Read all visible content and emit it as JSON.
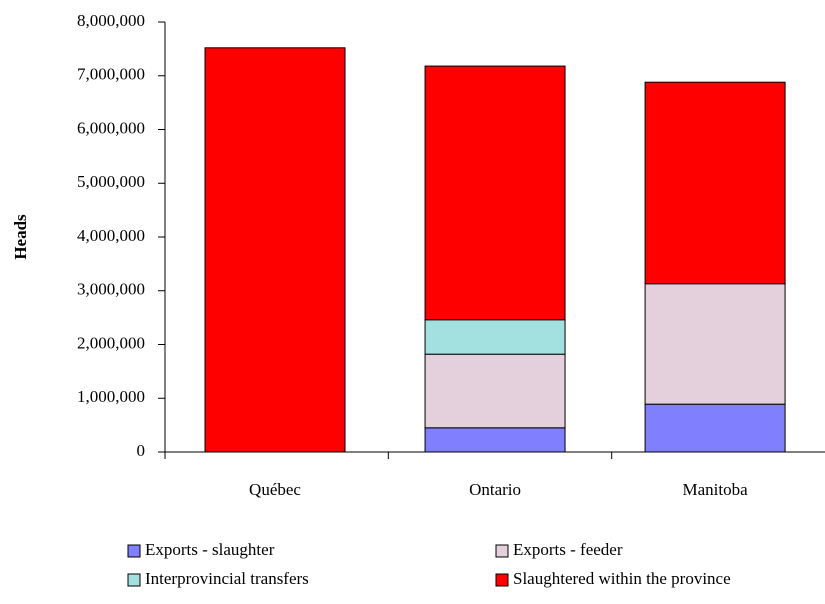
{
  "chart_data": {
    "type": "stacked_bar",
    "y_label": "Heads",
    "categories": [
      "Québec",
      "Ontario",
      "Manitoba"
    ],
    "series": [
      {
        "name": "Exports - slaughter",
        "color": "#8080ff",
        "values": [
          0,
          450000,
          890000
        ]
      },
      {
        "name": "Exports - feeder",
        "color": "#e4cfdc",
        "values": [
          0,
          1370000,
          2240000
        ]
      },
      {
        "name": "Interprovincial transfers",
        "color": "#a3e0e0",
        "values": [
          0,
          640000,
          0
        ]
      },
      {
        "name": "Slaughtered within the province",
        "color": "#ff0000",
        "values": [
          7520000,
          4720000,
          3750000
        ]
      }
    ],
    "ylim": [
      0,
      8000000
    ],
    "yticks": [
      0,
      {
        "value": 1000000,
        "label": "1,000,000"
      },
      {
        "value": 2000000,
        "label": "2,000,000"
      },
      {
        "value": 3000000,
        "label": "3,000,000"
      },
      {
        "value": 4000000,
        "label": "4,000,000"
      },
      {
        "value": 5000000,
        "label": "5,000,000"
      },
      {
        "value": 6000000,
        "label": "6,000,000"
      },
      {
        "value": 7000000,
        "label": "7,000,000"
      },
      {
        "value": 8000000,
        "label": "8,000,000"
      }
    ],
    "grid": false,
    "legend": "bottom"
  }
}
